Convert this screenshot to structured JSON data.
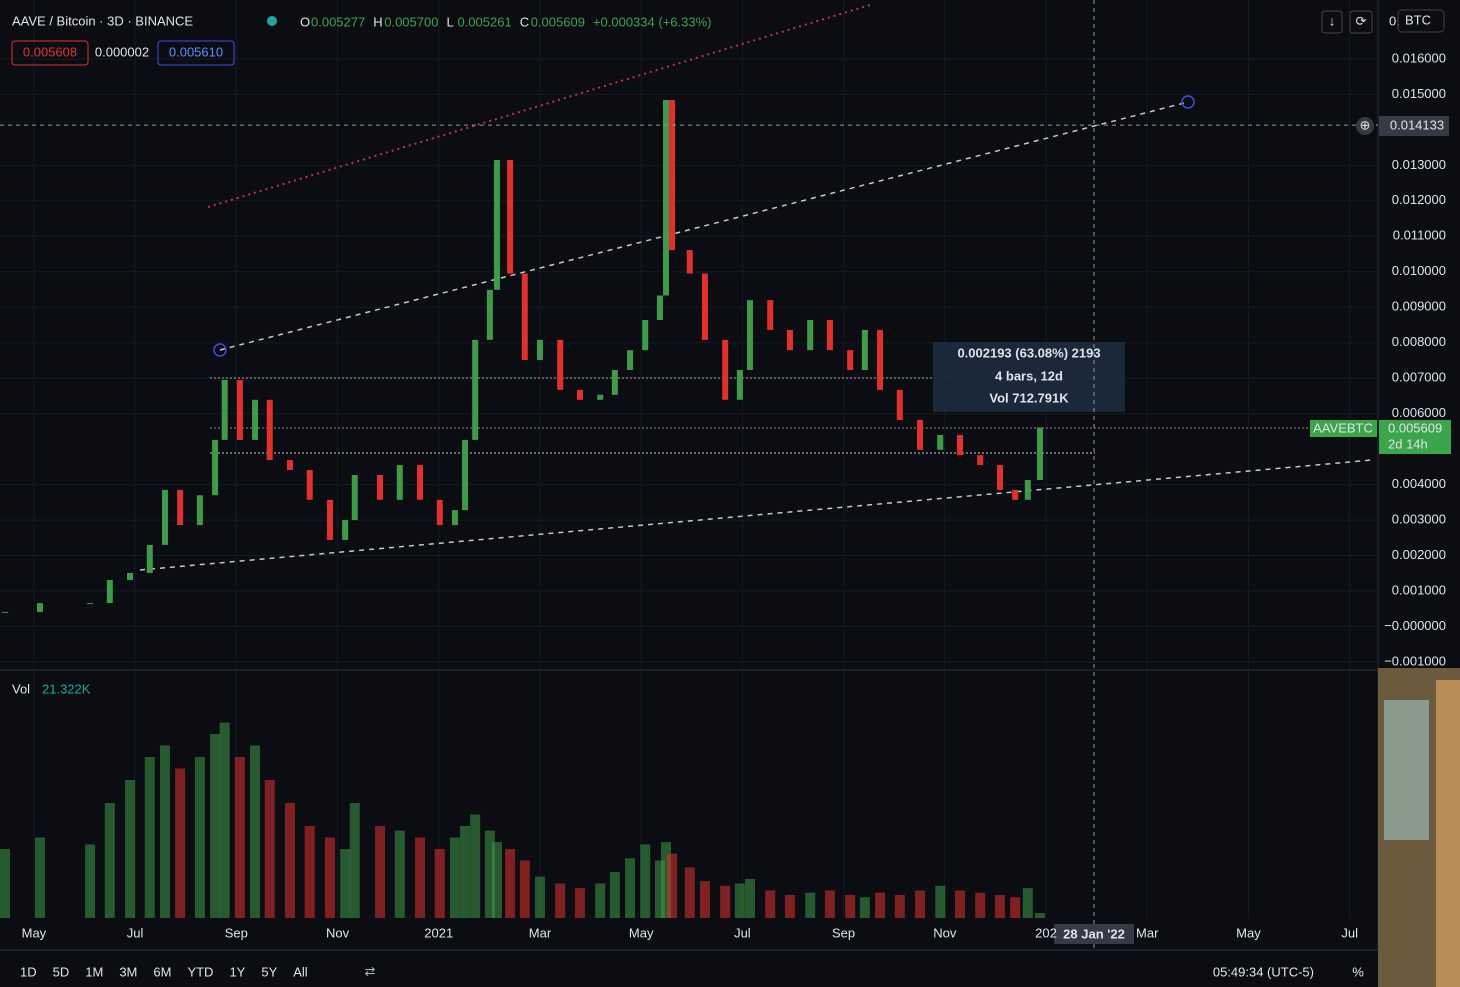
{
  "header": {
    "symbol": "AAVE / Bitcoin · 3D · BINANCE",
    "ohlc": [
      {
        "key": "O",
        "value": "0.005277"
      },
      {
        "key": "H",
        "value": "0.005700"
      },
      {
        "key": "L",
        "value": "0.005261"
      },
      {
        "key": "C",
        "value": "0.005609"
      }
    ],
    "change": "+0.000334 (+6.33%)",
    "price_boxes": [
      "0.005608",
      "0.000002",
      "0.005610"
    ]
  },
  "price_axis_top": {
    "partial": "0.",
    "currency": "BTC"
  },
  "chart_data": {
    "type": "candlestick",
    "x": [
      -0.57,
      0.12,
      1.11,
      1.5,
      1.9,
      2.29,
      2.59,
      2.89,
      3.28,
      3.58,
      3.77,
      4.07,
      4.37,
      4.66,
      5.06,
      5.45,
      5.85,
      6.15,
      6.34,
      6.84,
      7.23,
      7.63,
      8.02,
      8.32,
      8.52,
      8.72,
      9.01,
      9.15,
      9.41,
      9.7,
      10.0,
      10.4,
      10.79,
      11.19,
      11.48,
      11.78,
      12.08,
      12.37,
      12.49,
      12.61,
      12.96,
      13.26,
      13.66,
      13.95,
      14.15,
      14.55,
      14.94,
      15.34,
      15.73,
      16.13,
      16.42,
      16.72,
      17.11,
      17.51,
      17.91,
      18.3,
      18.7,
      19.09,
      19.39,
      19.64,
      19.88
    ],
    "values": [
      0.00041,
      0.00066,
      0.00066,
      0.00131,
      0.00151,
      0.0023,
      0.00385,
      0.00286,
      0.0037,
      0.00526,
      0.00695,
      0.00526,
      0.00639,
      0.00469,
      0.00441,
      0.00357,
      0.00244,
      0.003,
      0.00427,
      0.00357,
      0.00455,
      0.00357,
      0.00286,
      0.00328,
      0.00526,
      0.00808,
      0.00949,
      0.01315,
      0.00995,
      0.00751,
      0.00808,
      0.00667,
      0.00639,
      0.00653,
      0.00723,
      0.00779,
      0.00864,
      0.00933,
      0.01484,
      0.01061,
      0.00995,
      0.00808,
      0.00639,
      0.00723,
      0.0092,
      0.00836,
      0.00779,
      0.00864,
      0.00779,
      0.00723,
      0.00836,
      0.00667,
      0.00582,
      0.00498,
      0.0054,
      0.00483,
      0.00455,
      0.00385,
      0.00357,
      0.00413,
      0.005609
    ],
    "up_color": "#3f9a4a",
    "down_color": "#e0312f",
    "volume": {
      "label": "Vol",
      "last_label": "21.322K",
      "values": [
        300,
        350,
        320,
        500,
        600,
        700,
        750,
        650,
        700,
        800,
        850,
        700,
        750,
        600,
        500,
        400,
        350,
        300,
        500,
        400,
        380,
        350,
        300,
        350,
        400,
        450,
        380,
        330,
        300,
        250,
        180,
        150,
        130,
        150,
        200,
        260,
        320,
        250,
        330,
        280,
        220,
        160,
        140,
        150,
        170,
        120,
        100,
        110,
        120,
        100,
        90,
        110,
        100,
        120,
        140,
        120,
        110,
        100,
        90,
        130,
        21.322
      ]
    },
    "xlim": [
      -0.67,
      26.56
    ],
    "xticks": [
      {
        "value": 0,
        "label": "May"
      },
      {
        "value": 2,
        "label": "Jul"
      },
      {
        "value": 4,
        "label": "Sep"
      },
      {
        "value": 6,
        "label": "Nov"
      },
      {
        "value": 8,
        "label": "2021"
      },
      {
        "value": 10,
        "label": "Mar"
      },
      {
        "value": 12,
        "label": "May"
      },
      {
        "value": 14,
        "label": "Jul"
      },
      {
        "value": 16,
        "label": "Sep"
      },
      {
        "value": 18,
        "label": "Nov"
      },
      {
        "value": 20,
        "label": "202"
      },
      {
        "value": 22,
        "label": "Mar"
      },
      {
        "value": 24,
        "label": "May"
      },
      {
        "value": 26,
        "label": "Jul"
      }
    ],
    "ylim": [
      -0.00117,
      0.01766
    ],
    "yticks": [
      {
        "value": 0.016,
        "label": "0.016000"
      },
      {
        "value": 0.015,
        "label": "0.015000"
      },
      {
        "value": 0.013,
        "label": "0.013000"
      },
      {
        "value": 0.012,
        "label": "0.012000"
      },
      {
        "value": 0.011,
        "label": "0.011000"
      },
      {
        "value": 0.01,
        "label": "0.010000"
      },
      {
        "value": 0.009,
        "label": "0.009000"
      },
      {
        "value": 0.008,
        "label": "0.008000"
      },
      {
        "value": 0.007,
        "label": "0.007000"
      },
      {
        "value": 0.006,
        "label": "0.006000"
      },
      {
        "value": 0.004,
        "label": "0.004000"
      },
      {
        "value": 0.003,
        "label": "0.003000"
      },
      {
        "value": 0.002,
        "label": "0.002000"
      },
      {
        "value": 0.001,
        "label": "0.001000"
      },
      {
        "value": 0,
        "label": "−0.000000"
      },
      {
        "value": -0.001,
        "label": "−0.001000"
      }
    ],
    "grid": true,
    "crosshair": {
      "price": "0.014133",
      "time": "28 Jan '22"
    },
    "last_price": {
      "symbol": "AAVEBTC",
      "price": "0.005609",
      "countdown": "2d 14h"
    },
    "measure": [
      "0.002193 (63.08%) 2193",
      "4 bars, 12d",
      "Vol 712.791K"
    ]
  },
  "toolbar": {
    "ranges": [
      "1D",
      "5D",
      "1M",
      "3M",
      "6M",
      "YTD",
      "1Y",
      "5Y",
      "All"
    ],
    "time": "05:49:34 (UTC-5)",
    "percent": "%"
  }
}
